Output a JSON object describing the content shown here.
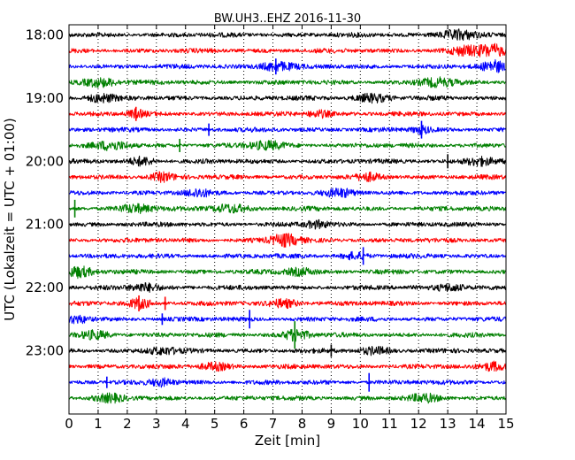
{
  "chart_data": {
    "type": "line",
    "title": "BW.UH3..EHZ 2016-11-30",
    "xlabel": "Zeit  [min]",
    "ylabel": "UTC (Lokalzeit = UTC + 01:00)",
    "xlim": [
      0,
      15
    ],
    "x_ticks": [
      "0",
      "1",
      "2",
      "3",
      "4",
      "5",
      "6",
      "7",
      "8",
      "9",
      "10",
      "11",
      "12",
      "13",
      "14",
      "15"
    ],
    "y_ticks": [
      "18:00",
      "19:00",
      "20:00",
      "21:00",
      "22:00",
      "23:00"
    ],
    "grid": {
      "vertical": true,
      "style": "dotted"
    },
    "trace_colors": [
      "#000000",
      "#ff0000",
      "#0000ff",
      "#008000"
    ],
    "traces": [
      {
        "start": "18:00",
        "bursts": [
          [
            13.3,
            1.6,
            0.6
          ]
        ],
        "spikes": []
      },
      {
        "start": "18:15",
        "bursts": [
          [
            14.5,
            2.0,
            0.5
          ],
          [
            13.6,
            1.3,
            0.5
          ]
        ],
        "spikes": []
      },
      {
        "start": "18:30",
        "bursts": [
          [
            14.6,
            1.8,
            0.4
          ],
          [
            7.1,
            1.4,
            0.6
          ]
        ],
        "spikes": [
          [
            7.1,
            1.8
          ]
        ]
      },
      {
        "start": "18:45",
        "bursts": [
          [
            1.1,
            1.4,
            0.6
          ],
          [
            12.6,
            1.3,
            0.6
          ]
        ],
        "spikes": []
      },
      {
        "start": "19:00",
        "bursts": [
          [
            1.1,
            1.3,
            0.5
          ],
          [
            10.4,
            1.2,
            0.6
          ]
        ],
        "spikes": []
      },
      {
        "start": "19:15",
        "bursts": [
          [
            2.3,
            1.1,
            0.3
          ],
          [
            8.6,
            1.1,
            0.4
          ]
        ],
        "spikes": [
          [
            2.3,
            1.6
          ]
        ]
      },
      {
        "start": "19:30",
        "bursts": [
          [
            12.1,
            1.2,
            0.3
          ]
        ],
        "spikes": [
          [
            12.1,
            2.0
          ],
          [
            4.8,
            1.4
          ]
        ]
      },
      {
        "start": "19:45",
        "bursts": [
          [
            1.5,
            1.2,
            0.6
          ],
          [
            6.8,
            1.3,
            0.6
          ]
        ],
        "spikes": [
          [
            3.8,
            1.5
          ]
        ]
      },
      {
        "start": "20:00",
        "bursts": [
          [
            2.5,
            1.3,
            0.4
          ],
          [
            14.1,
            1.3,
            0.5
          ]
        ],
        "spikes": [
          [
            13.0,
            1.6
          ]
        ]
      },
      {
        "start": "20:15",
        "bursts": [
          [
            3.2,
            1.4,
            0.4
          ],
          [
            10.3,
            1.1,
            0.4
          ]
        ],
        "spikes": []
      },
      {
        "start": "20:30",
        "bursts": [
          [
            4.4,
            1.2,
            0.4
          ],
          [
            9.3,
            1.1,
            0.5
          ]
        ],
        "spikes": []
      },
      {
        "start": "20:45",
        "bursts": [
          [
            2.3,
            1.3,
            0.6
          ],
          [
            5.5,
            1.3,
            0.6
          ]
        ],
        "spikes": [
          [
            0.2,
            2.0
          ]
        ]
      },
      {
        "start": "21:00",
        "bursts": [
          [
            8.5,
            1.1,
            0.4
          ]
        ],
        "spikes": []
      },
      {
        "start": "21:15",
        "bursts": [
          [
            7.4,
            1.9,
            0.5
          ]
        ],
        "spikes": [
          [
            7.4,
            1.5
          ]
        ]
      },
      {
        "start": "21:30",
        "bursts": [
          [
            9.8,
            1.0,
            0.4
          ]
        ],
        "spikes": [
          [
            10.1,
            2.0
          ]
        ]
      },
      {
        "start": "21:45",
        "bursts": [
          [
            0.3,
            1.6,
            0.5
          ],
          [
            7.9,
            1.2,
            0.5
          ]
        ],
        "spikes": []
      },
      {
        "start": "22:00",
        "bursts": [
          [
            2.6,
            1.4,
            0.5
          ],
          [
            13.1,
            1.2,
            0.5
          ]
        ],
        "spikes": []
      },
      {
        "start": "22:15",
        "bursts": [
          [
            2.4,
            1.5,
            0.4
          ],
          [
            7.4,
            1.3,
            0.5
          ]
        ],
        "spikes": [
          [
            2.4,
            1.8
          ],
          [
            3.3,
            1.5
          ]
        ]
      },
      {
        "start": "22:30",
        "bursts": [
          [
            0.3,
            1.1,
            0.4
          ]
        ],
        "spikes": [
          [
            6.2,
            2.1
          ],
          [
            3.2,
            1.3
          ]
        ]
      },
      {
        "start": "22:45",
        "bursts": [
          [
            7.8,
            1.9,
            0.4
          ],
          [
            0.9,
            1.2,
            0.5
          ]
        ],
        "spikes": [
          [
            7.75,
            3.1
          ]
        ]
      },
      {
        "start": "23:00",
        "bursts": [
          [
            3.2,
            1.1,
            0.5
          ],
          [
            10.5,
            1.1,
            0.5
          ]
        ],
        "spikes": [
          [
            9.0,
            1.4
          ]
        ]
      },
      {
        "start": "23:15",
        "bursts": [
          [
            14.6,
            1.4,
            0.4
          ],
          [
            5.0,
            1.1,
            0.5
          ]
        ],
        "spikes": []
      },
      {
        "start": "23:30",
        "bursts": [
          [
            3.2,
            1.1,
            0.4
          ]
        ],
        "spikes": [
          [
            10.3,
            2.1
          ],
          [
            1.3,
            1.3
          ]
        ]
      },
      {
        "start": "23:45",
        "bursts": [
          [
            1.4,
            1.1,
            0.5
          ],
          [
            12.2,
            1.1,
            0.5
          ]
        ],
        "spikes": []
      }
    ]
  }
}
